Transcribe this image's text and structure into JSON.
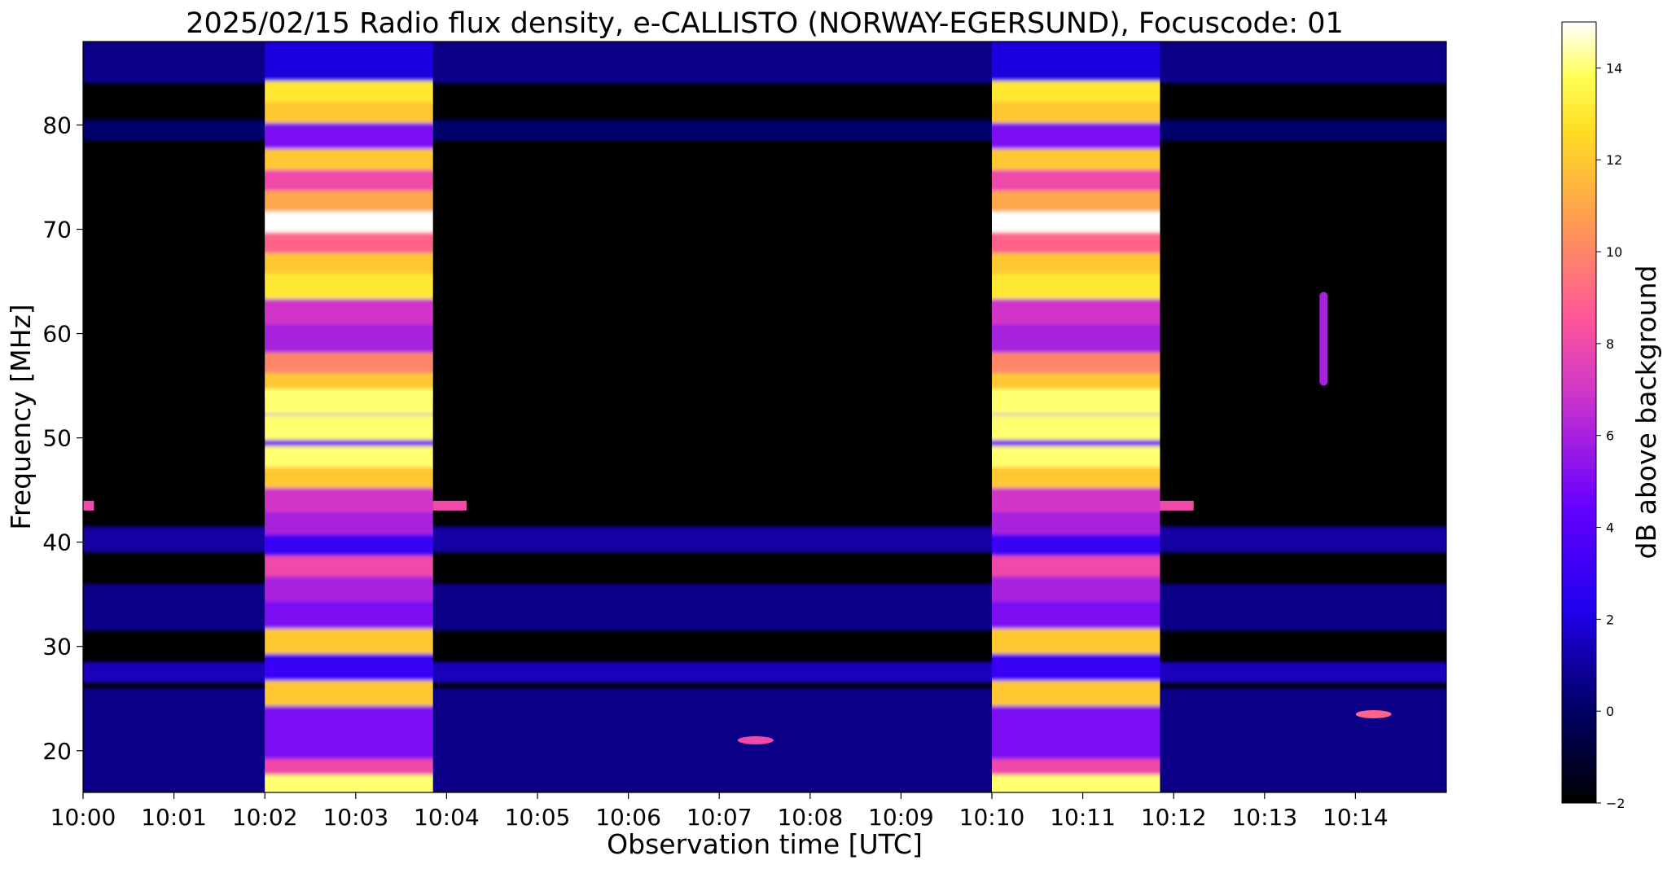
{
  "chart_data": {
    "type": "heatmap",
    "title": "2025/02/15  Radio flux density, e-CALLISTO (NORWAY-EGERSUND), Focuscode: 01",
    "xlabel": "Observation time [UTC]",
    "ylabel": "Frequency [MHz]",
    "x_range_minutes": [
      0,
      15
    ],
    "y_range_mhz": [
      16,
      88
    ],
    "x_ticks": [
      {
        "minute": 0,
        "label": "10:00"
      },
      {
        "minute": 1,
        "label": "10:01"
      },
      {
        "minute": 2,
        "label": "10:02"
      },
      {
        "minute": 3,
        "label": "10:03"
      },
      {
        "minute": 4,
        "label": "10:04"
      },
      {
        "minute": 5,
        "label": "10:05"
      },
      {
        "minute": 6,
        "label": "10:06"
      },
      {
        "minute": 7,
        "label": "10:07"
      },
      {
        "minute": 8,
        "label": "10:08"
      },
      {
        "minute": 9,
        "label": "10:09"
      },
      {
        "minute": 10,
        "label": "10:10"
      },
      {
        "minute": 11,
        "label": "10:11"
      },
      {
        "minute": 12,
        "label": "10:12"
      },
      {
        "minute": 13,
        "label": "10:13"
      },
      {
        "minute": 14,
        "label": "10:14"
      }
    ],
    "y_ticks": [
      {
        "value": 20,
        "label": "20"
      },
      {
        "value": 30,
        "label": "30"
      },
      {
        "value": 40,
        "label": "40"
      },
      {
        "value": 50,
        "label": "50"
      },
      {
        "value": 60,
        "label": "60"
      },
      {
        "value": 70,
        "label": "70"
      },
      {
        "value": 80,
        "label": "80"
      }
    ],
    "colorbar": {
      "label": "dB above background",
      "range": [
        -2,
        15
      ],
      "colormap": "gnuplot2",
      "ticks": [
        {
          "value": -2,
          "label": "−2"
        },
        {
          "value": 0,
          "label": "0"
        },
        {
          "value": 2,
          "label": "2"
        },
        {
          "value": 4,
          "label": "4"
        },
        {
          "value": 6,
          "label": "6"
        },
        {
          "value": 8,
          "label": "8"
        },
        {
          "value": 10,
          "label": "10"
        },
        {
          "value": 12,
          "label": "12"
        },
        {
          "value": 14,
          "label": "14"
        }
      ]
    },
    "calibration_blocks": [
      {
        "start_minute": 2.0,
        "end_minute": 3.85
      },
      {
        "start_minute": 10.0,
        "end_minute": 11.85
      }
    ],
    "calibration_band_levels_db": [
      {
        "mhz": 83,
        "db": 13
      },
      {
        "mhz": 81,
        "db": 12
      },
      {
        "mhz": 79,
        "db": 5
      },
      {
        "mhz": 76.5,
        "db": 12
      },
      {
        "mhz": 74.5,
        "db": 8
      },
      {
        "mhz": 72.5,
        "db": 11
      },
      {
        "mhz": 70.5,
        "db": 15
      },
      {
        "mhz": 68.5,
        "db": 9
      },
      {
        "mhz": 66.5,
        "db": 12
      },
      {
        "mhz": 64.5,
        "db": 13
      },
      {
        "mhz": 62,
        "db": 7
      },
      {
        "mhz": 59.5,
        "db": 6
      },
      {
        "mhz": 57,
        "db": 10
      },
      {
        "mhz": 55,
        "db": 12
      },
      {
        "mhz": 53.5,
        "db": 14
      },
      {
        "mhz": 51,
        "db": 14
      },
      {
        "mhz": 48,
        "db": 14
      },
      {
        "mhz": 46,
        "db": 12
      },
      {
        "mhz": 44,
        "db": 7
      },
      {
        "mhz": 41.5,
        "db": 6
      },
      {
        "mhz": 39.5,
        "db": 3
      },
      {
        "mhz": 37.5,
        "db": 8
      },
      {
        "mhz": 35.5,
        "db": 6
      },
      {
        "mhz": 33,
        "db": 5
      },
      {
        "mhz": 30.5,
        "db": 12
      },
      {
        "mhz": 28,
        "db": 3
      },
      {
        "mhz": 25.5,
        "db": 12
      },
      {
        "mhz": 23,
        "db": 5
      },
      {
        "mhz": 20.5,
        "db": 5
      },
      {
        "mhz": 18,
        "db": 8
      },
      {
        "mhz": 16.5,
        "db": 14
      }
    ],
    "background_bands_db": [
      {
        "mhz_from": 84,
        "mhz_to": 88,
        "db": 1
      },
      {
        "mhz_from": 78.5,
        "mhz_to": 80.5,
        "db": 0.5
      },
      {
        "mhz_from": 39,
        "mhz_to": 41.5,
        "db": 1.5
      },
      {
        "mhz_from": 31.5,
        "mhz_to": 36,
        "db": 1
      },
      {
        "mhz_from": 26.5,
        "mhz_to": 28.5,
        "db": 2
      },
      {
        "mhz_from": 16,
        "mhz_to": 26,
        "db": 1
      }
    ],
    "features": [
      {
        "minute_from": 0.0,
        "minute_to": 0.12,
        "mhz": 43.5,
        "db": 8
      },
      {
        "minute_from": 3.85,
        "minute_to": 4.22,
        "mhz": 43.5,
        "db": 8
      },
      {
        "minute_from": 11.85,
        "minute_to": 12.22,
        "mhz": 43.5,
        "db": 8
      },
      {
        "minute": 13.65,
        "mhz_from": 55,
        "mhz_to": 64,
        "db": 6
      },
      {
        "minute": 14.2,
        "mhz": 23.5,
        "db": 9
      },
      {
        "minute": 7.4,
        "mhz": 21,
        "db": 8
      }
    ]
  }
}
